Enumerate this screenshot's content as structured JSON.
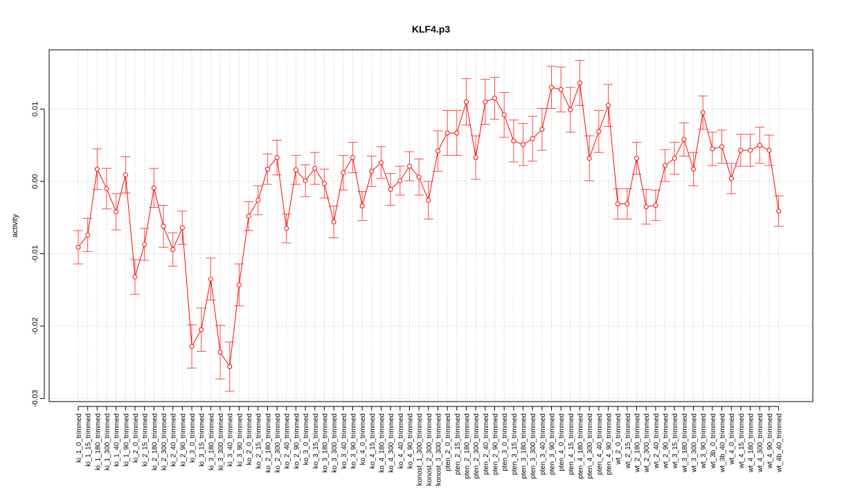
{
  "chart_data": {
    "type": "line",
    "title": "KLF4.p3",
    "xlabel": "",
    "ylabel": "activity",
    "ylim": [
      -0.031,
      0.018
    ],
    "y_ticks": [
      -0.03,
      -0.02,
      -0.01,
      0.0,
      0.01
    ],
    "y_tick_labels": [
      "-0.03",
      "-0.02",
      "-0.01",
      "0.00",
      "0.01"
    ],
    "grid": true,
    "line_color": "#ff0000",
    "error_bar_color": "#ff4444",
    "grid_color": "#cccccc",
    "categories": [
      "ki_1_0_trimmed",
      "ki_1_15_trimmed",
      "ki_1_180_trimmed",
      "ki_1_300_trimmed",
      "ki_1_40_trimmed",
      "ki_1_90_trimmed",
      "ki_2_0_trimmed",
      "ki_2_15_trimmed",
      "ki_2_180_trimmed",
      "ki_2_300_trimmed",
      "ki_2_40_trimmed",
      "ki_2_90_trimmed",
      "ki_3_0_trimmed",
      "ki_3_15_trimmed",
      "ki_3_180_trimmed",
      "ki_3_300_trimmed",
      "ki_3_40_trimmed",
      "ki_3_90_trimmed",
      "ko_2_0_trimmed",
      "ko_2_15_trimmed",
      "ko_2_180_trimmed",
      "ko_2_300_trimmed",
      "ko_2_40_trimmed",
      "ko_2_90_trimmed",
      "ko_3_0_trimmed",
      "ko_3_15_trimmed",
      "ko_3_180_trimmed",
      "ko_3_300_trimmed",
      "ko_3_40_trimmed",
      "ko_3_90_trimmed",
      "ko_4_0_trimmed",
      "ko_4_15_trimmed",
      "ko_4_180_trimmed",
      "ko_4_300_trimmed",
      "ko_4_40_trimmed",
      "ko_4_90_trimmed",
      "konost_1_300_trimmed",
      "konost_2_300_trimmed",
      "konost_3_300_trimmed",
      "pten_2_0_trimmed",
      "pten_2_15_trimmed",
      "pten_2_180_trimmed",
      "pten_2_300_trimmed",
      "pten_2_40_trimmed",
      "pten_2_90_trimmed",
      "pten_3_0_trimmed",
      "pten_3_15_trimmed",
      "pten_3_180_trimmed",
      "pten_3_300_trimmed",
      "pten_3_40_trimmed",
      "pten_3_90_trimmed",
      "pten_4_0_trimmed",
      "pten_4_15_trimmed",
      "pten_4_180_trimmed",
      "pten_4_300_trimmed",
      "pten_4_40_trimmed",
      "pten_4_90_trimmed",
      "wt_2_0_trimmed",
      "wt_2_15_trimmed",
      "wt_2_180_trimmed",
      "wt_2_300_trimmed",
      "wt_2_40_trimmed",
      "wt_2_90_trimmed",
      "wt_3_15_trimmed",
      "wt_3_180_trimmed",
      "wt_3_300_trimmed",
      "wt_3_90_trimmed",
      "wt_3b_0_trimmed",
      "wt_3b_40_trimmed",
      "wt_4_0_trimmed",
      "wt_4_15_trimmed",
      "wt_4_180_trimmed",
      "wt_4_300_trimmed",
      "wt_4_90_trimmed",
      "wt_4b_40_trimmed"
    ],
    "values": [
      -0.0091,
      -0.0074,
      0.0017,
      -0.001,
      -0.0042,
      0.0009,
      -0.0132,
      -0.0087,
      -0.0009,
      -0.0062,
      -0.0094,
      -0.0064,
      -0.0228,
      -0.0205,
      -0.0135,
      -0.0236,
      -0.0256,
      -0.0143,
      -0.0048,
      -0.0026,
      0.0017,
      0.0033,
      -0.0065,
      0.0016,
      0.0001,
      0.0018,
      -0.0003,
      -0.0056,
      0.0012,
      0.0033,
      -0.0034,
      0.0014,
      0.0026,
      -0.0011,
      0.0001,
      0.0021,
      0.0006,
      -0.0026,
      0.0042,
      0.0067,
      0.0067,
      0.011,
      0.0033,
      0.011,
      0.0115,
      0.0092,
      0.0056,
      0.0051,
      0.0059,
      0.0072,
      0.013,
      0.0127,
      0.0099,
      0.0136,
      0.0032,
      0.0069,
      0.0105,
      -0.0031,
      -0.0031,
      0.0032,
      -0.0035,
      -0.0033,
      0.0022,
      0.0032,
      0.0058,
      0.0017,
      0.0095,
      0.0045,
      0.0048,
      0.0004,
      0.0043,
      0.0043,
      0.005,
      0.0043,
      -0.0041
    ],
    "errors": [
      0.0023,
      0.0023,
      0.0028,
      0.0028,
      0.0025,
      0.0025,
      0.0024,
      0.0022,
      0.0027,
      0.0029,
      0.0023,
      0.0023,
      0.003,
      0.003,
      0.0029,
      0.0037,
      0.0034,
      0.0029,
      0.002,
      0.002,
      0.0021,
      0.0024,
      0.002,
      0.002,
      0.0022,
      0.0022,
      0.002,
      0.0022,
      0.0024,
      0.0021,
      0.002,
      0.0021,
      0.0022,
      0.0022,
      0.002,
      0.002,
      0.0025,
      0.0026,
      0.0028,
      0.0031,
      0.0031,
      0.0032,
      0.003,
      0.0031,
      0.0029,
      0.0031,
      0.0029,
      0.0029,
      0.0031,
      0.0029,
      0.0029,
      0.0031,
      0.0031,
      0.0031,
      0.0031,
      0.0029,
      0.0029,
      0.0021,
      0.0021,
      0.0022,
      0.0024,
      0.0021,
      0.0022,
      0.0022,
      0.0023,
      0.0023,
      0.0023,
      0.0023,
      0.0023,
      0.0021,
      0.0022,
      0.0022,
      0.0025,
      0.0021,
      0.0021
    ]
  }
}
